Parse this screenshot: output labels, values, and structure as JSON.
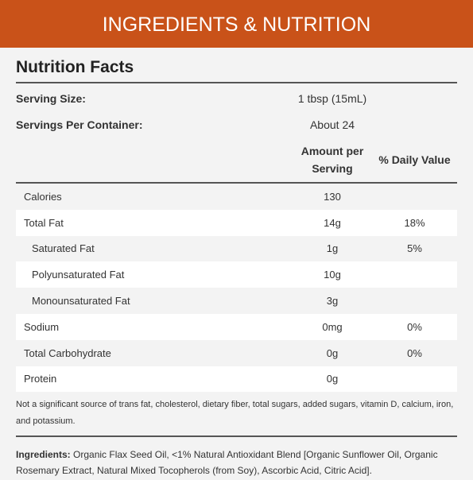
{
  "header": {
    "title": "INGREDIENTS & NUTRITION"
  },
  "facts": {
    "title": "Nutrition Facts",
    "serving_size": {
      "label": "Serving Size:",
      "value": "1 tbsp (15mL)"
    },
    "servings_per_container": {
      "label": "Servings Per Container:",
      "value": "About 24"
    },
    "columns": [
      "Amount per Serving",
      "% Daily Value"
    ],
    "rows": [
      {
        "name": "Calories",
        "amount": "130"
      },
      {
        "name": "Total Fat",
        "amount": "14g",
        "dv": "18%"
      },
      {
        "name": "Saturated Fat",
        "amount": "1g",
        "dv": "5%",
        "sub": true
      },
      {
        "name": "Polyunsaturated Fat",
        "amount": "10g",
        "sub": true
      },
      {
        "name": "Monounsaturated Fat",
        "amount": "3g",
        "sub": true
      },
      {
        "name": "Sodium",
        "amount": "0mg",
        "dv": "0%"
      },
      {
        "name": "Total Carbohydrate",
        "amount": "0g",
        "dv": "0%"
      },
      {
        "name": "Protein",
        "amount": "0g"
      }
    ],
    "footnote": "Not a significant source of trans fat, cholesterol, dietary fiber, total sugars, added sugars, vitamin D, calcium, iron, and potassium."
  },
  "ingredients": {
    "label": "Ingredients:",
    "text": "Organic Flax Seed Oil, <1% Natural Antioxidant Blend [Organic Sunflower Oil, Organic Rosemary Extract, Natural Mixed Tocopherols (from Soy), Ascorbic Acid, Citric Acid]."
  }
}
